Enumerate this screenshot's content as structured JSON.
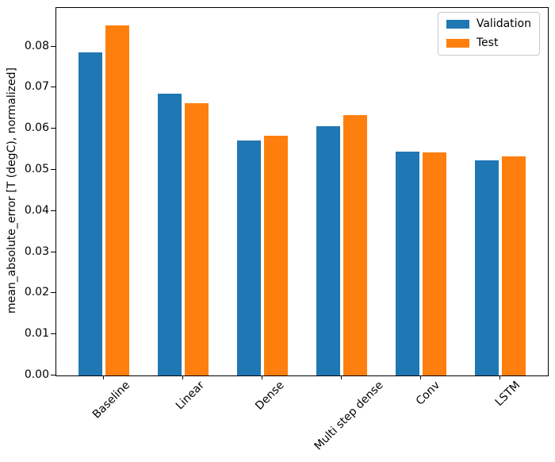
{
  "chart_data": {
    "type": "bar",
    "title": "",
    "categories": [
      "Baseline",
      "Linear",
      "Dense",
      "Multi step dense",
      "Conv",
      "LSTM"
    ],
    "series": [
      {
        "name": "Validation",
        "color": "#1f77b4",
        "values": [
          0.0785,
          0.0686,
          0.0572,
          0.0606,
          0.0545,
          0.0524
        ]
      },
      {
        "name": "Test",
        "color": "#ff7f0e",
        "values": [
          0.0852,
          0.0663,
          0.0583,
          0.0633,
          0.0543,
          0.0533
        ]
      }
    ],
    "xlabel": "",
    "ylabel": "mean_absolute_error [T (degC), normalized]",
    "ylim": [
      0,
      0.0894
    ],
    "yticks": [
      0,
      0.01,
      0.02,
      0.03,
      0.04,
      0.05,
      0.06,
      0.07,
      0.08
    ],
    "ytick_label_format": "2dp",
    "xtick_rotation_deg": 45,
    "grid": false,
    "legend": {
      "position": "upper right",
      "entries": [
        "Validation",
        "Test"
      ]
    },
    "bar_width_units": 0.3,
    "bar_offset_units": 0.17,
    "axes_facecolor": "#ffffff",
    "spine_color": "#000000"
  }
}
